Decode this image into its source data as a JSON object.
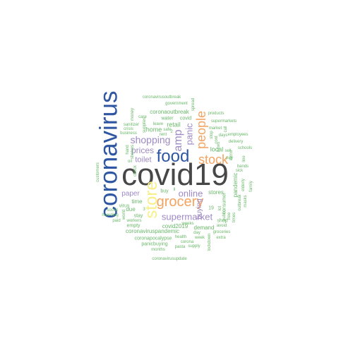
{
  "word_cloud": {
    "colors": {
      "dark": "#474747",
      "blue": "#2f56a2",
      "purple": "#9e8ac5",
      "orange": "#f4a460",
      "yellow": "#f7ef8a",
      "green": "#6ab86a"
    },
    "words": [
      {
        "text": "covid19",
        "color": "dark"
      },
      {
        "text": "coronavirus",
        "color": "blue"
      },
      {
        "text": "food",
        "color": "blue"
      },
      {
        "text": "store",
        "color": "yellow"
      },
      {
        "text": "stock",
        "color": "orange"
      },
      {
        "text": "grocery",
        "color": "orange"
      },
      {
        "text": "people",
        "color": "orange"
      },
      {
        "text": "amp",
        "color": "purple"
      },
      {
        "text": "panic",
        "color": "purple"
      },
      {
        "text": "shopping",
        "color": "purple"
      },
      {
        "text": "prices",
        "color": "purple"
      },
      {
        "text": "toilet",
        "color": "purple"
      },
      {
        "text": "online",
        "color": "purple"
      },
      {
        "text": "supermarket",
        "color": "purple"
      },
      {
        "text": "paper",
        "color": "purple"
      },
      {
        "text": "buying",
        "color": "purple"
      },
      {
        "text": "local",
        "color": "green"
      },
      {
        "text": "retail",
        "color": "green"
      },
      {
        "text": "home",
        "color": "green"
      },
      {
        "text": "stores",
        "color": "green"
      },
      {
        "text": "covid2019",
        "color": "green"
      },
      {
        "text": "coronaviruspandemic",
        "color": "green"
      },
      {
        "text": "coronapocalypse",
        "color": "green"
      },
      {
        "text": "panicbuying",
        "color": "green"
      },
      {
        "text": "demand",
        "color": "green"
      },
      {
        "text": "pandemic",
        "color": "green"
      },
      {
        "text": "consumer",
        "color": "green"
      },
      {
        "text": "time",
        "color": "green"
      },
      {
        "text": "due",
        "color": "green"
      },
      {
        "text": "virus",
        "color": "green"
      },
      {
        "text": "stay",
        "color": "green"
      },
      {
        "text": "empty",
        "color": "green"
      },
      {
        "text": "workers",
        "color": "green"
      },
      {
        "text": "coronaoutbreak",
        "color": "green"
      },
      {
        "text": "coronavirusoutbreak",
        "color": "green"
      },
      {
        "text": "government",
        "color": "green"
      },
      {
        "text": "spread",
        "color": "green"
      },
      {
        "text": "products",
        "color": "green"
      },
      {
        "text": "supermarkets",
        "color": "green"
      },
      {
        "text": "market",
        "color": "green"
      },
      {
        "text": "employees",
        "color": "green"
      },
      {
        "text": "delivery",
        "color": "green"
      },
      {
        "text": "schools",
        "color": "green"
      },
      {
        "text": "hands",
        "color": "green"
      },
      {
        "text": "sick",
        "color": "green"
      },
      {
        "text": "elderly",
        "color": "green"
      },
      {
        "text": "outbreak",
        "color": "green"
      },
      {
        "text": "masks",
        "color": "green"
      },
      {
        "text": "family",
        "color": "green"
      },
      {
        "text": "line",
        "color": "green"
      },
      {
        "text": "items",
        "color": "green"
      },
      {
        "text": "days",
        "color": "green"
      },
      {
        "text": "call",
        "color": "green"
      },
      {
        "text": "news",
        "color": "green"
      },
      {
        "text": "stop",
        "color": "green"
      },
      {
        "text": "shop",
        "color": "green"
      },
      {
        "text": "weeks",
        "color": "green"
      },
      {
        "text": "avoid",
        "color": "green"
      },
      {
        "text": "groceries",
        "color": "green"
      },
      {
        "text": "extra",
        "color": "green"
      },
      {
        "text": "week",
        "color": "green"
      },
      {
        "text": "corona",
        "color": "green"
      },
      {
        "text": "health",
        "color": "green"
      },
      {
        "text": "pasta",
        "color": "green"
      },
      {
        "text": "supply",
        "color": "green"
      },
      {
        "text": "months",
        "color": "green"
      },
      {
        "text": "coronavirusupdate",
        "color": "green"
      },
      {
        "text": "lockdown",
        "color": "green"
      },
      {
        "text": "social",
        "color": "green"
      },
      {
        "text": "hoarding",
        "color": "green"
      },
      {
        "text": "paid",
        "color": "green"
      },
      {
        "text": "world",
        "color": "green"
      },
      {
        "text": "customers",
        "color": "green"
      },
      {
        "text": "sanitizer",
        "color": "green"
      },
      {
        "text": "crisis",
        "color": "green"
      },
      {
        "text": "business",
        "color": "green"
      },
      {
        "text": "care",
        "color": "green"
      },
      {
        "text": "supplies",
        "color": "green"
      },
      {
        "text": "money",
        "color": "green"
      },
      {
        "text": "hand",
        "color": "green"
      },
      {
        "text": "shelves",
        "color": "green"
      },
      {
        "text": "oil",
        "color": "green"
      },
      {
        "text": "leave",
        "color": "green"
      },
      {
        "text": "safe",
        "color": "green"
      },
      {
        "text": "water",
        "color": "green"
      },
      {
        "text": "covid",
        "color": "green"
      },
      {
        "text": "free",
        "color": "green"
      },
      {
        "text": "times",
        "color": "green"
      },
      {
        "text": "public",
        "color": "green"
      },
      {
        "text": "buy",
        "color": "green"
      },
      {
        "text": "day",
        "color": "green"
      },
      {
        "text": "19",
        "color": "green"
      },
      {
        "text": "2",
        "color": "green"
      },
      {
        "text": "3",
        "color": "green"
      },
      {
        "text": "ll",
        "color": "green"
      },
      {
        "text": "lot",
        "color": "green"
      },
      {
        "text": "cont",
        "color": "green"
      },
      {
        "text": "check",
        "color": "green"
      },
      {
        "text": "rent",
        "color": "green"
      },
      {
        "text": "pay",
        "color": "green"
      },
      {
        "text": "sell",
        "color": "green"
      }
    ]
  }
}
